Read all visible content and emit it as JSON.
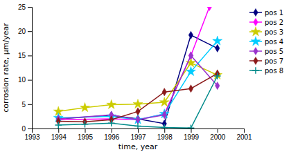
{
  "chart_data": {
    "type": "line",
    "xlabel": "time, year",
    "ylabel": "corrosion rate, μm/year",
    "xlim": [
      1993,
      2001
    ],
    "ylim": [
      0,
      25
    ],
    "xticks": [
      1993,
      1994,
      1995,
      1996,
      1997,
      1998,
      1999,
      2000,
      2001
    ],
    "yticks": [
      0,
      5,
      10,
      15,
      20,
      25
    ],
    "grid": false,
    "legend": "right",
    "series": [
      {
        "name": "pos 1",
        "color": "#000080",
        "marker": "diamond",
        "x": [
          1994,
          1996,
          1997,
          1998,
          1999,
          2000
        ],
        "values": [
          2.0,
          2.7,
          2.0,
          1.0,
          19.2,
          16.5
        ]
      },
      {
        "name": "pos 2",
        "color": "#FF00FF",
        "marker": "diamond",
        "x": [
          1994,
          1996,
          1997,
          1998,
          1999,
          1999.7
        ],
        "values": [
          1.8,
          2.0,
          1.8,
          3.0,
          15.0,
          25.0
        ]
      },
      {
        "name": "pos 3",
        "color": "#CCCC00",
        "marker": "star",
        "x": [
          1994,
          1995,
          1996,
          1997,
          1998,
          1999,
          2000
        ],
        "values": [
          3.5,
          4.3,
          4.9,
          5.0,
          5.4,
          13.5,
          11.0
        ]
      },
      {
        "name": "pos 4",
        "color": "#00CCFF",
        "marker": "star",
        "x": [
          1994,
          1996,
          1997,
          1998,
          1999,
          2000
        ],
        "values": [
          2.2,
          2.5,
          1.8,
          3.0,
          11.7,
          18.0
        ]
      },
      {
        "name": "pos 5",
        "color": "#9933CC",
        "marker": "diamond",
        "x": [
          1994,
          1996,
          1997,
          1998,
          1999,
          2000
        ],
        "values": [
          2.0,
          2.8,
          1.8,
          2.8,
          15.0,
          8.8
        ]
      },
      {
        "name": "pos 7",
        "color": "#8B1A1A",
        "marker": "diamond",
        "x": [
          1994,
          1995,
          1996,
          1997,
          1998,
          1999,
          2000
        ],
        "values": [
          1.5,
          1.4,
          1.8,
          3.5,
          7.5,
          8.2,
          11.3
        ]
      },
      {
        "name": "pos 8",
        "color": "#008B8B",
        "marker": "plus",
        "x": [
          1994,
          1995,
          1996,
          1997,
          1998,
          1999,
          2000
        ],
        "values": [
          0.7,
          0.9,
          1.1,
          0.5,
          0.2,
          0.1,
          10.8
        ]
      }
    ]
  }
}
